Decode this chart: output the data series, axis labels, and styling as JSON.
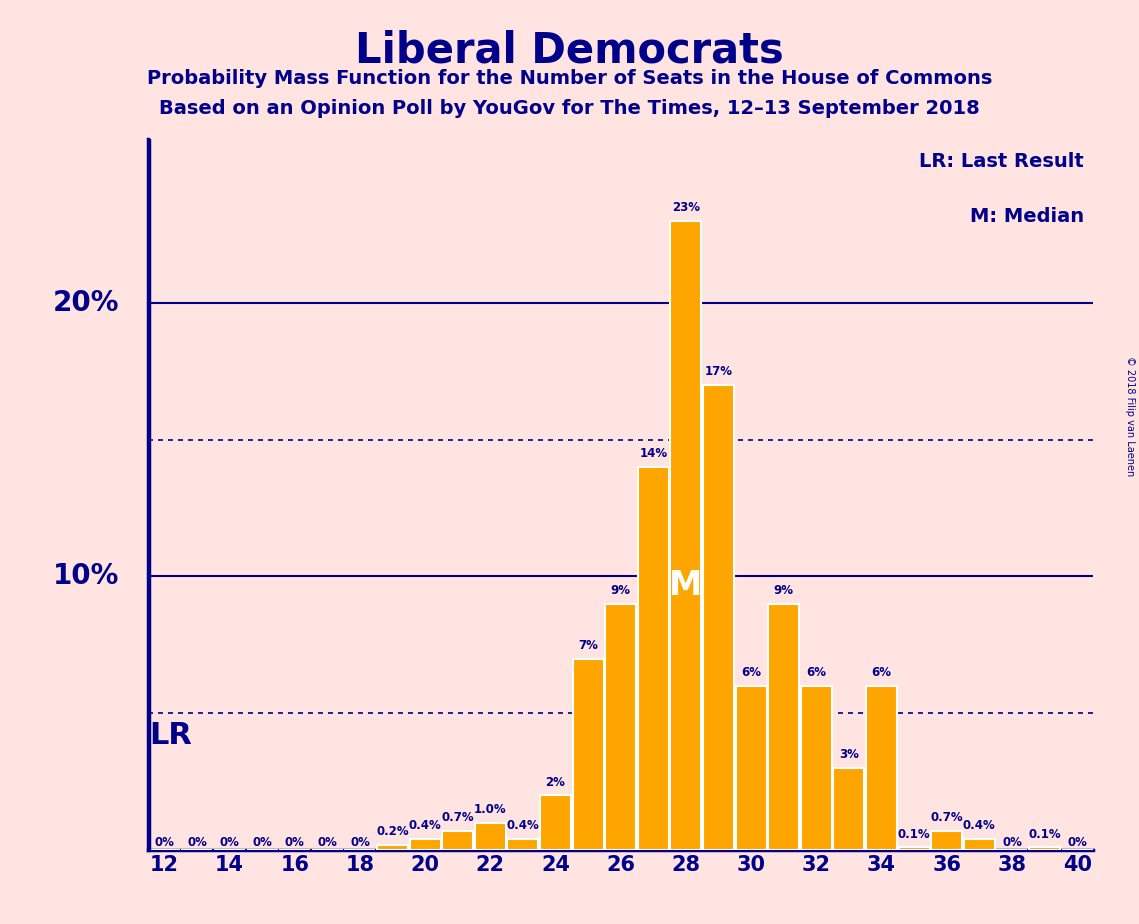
{
  "title": "Liberal Democrats",
  "subtitle1": "Probability Mass Function for the Number of Seats in the House of Commons",
  "subtitle2": "Based on an Opinion Poll by YouGov for The Times, 12–13 September 2018",
  "copyright": "© 2018 Filip van Laenen",
  "seats": [
    12,
    13,
    14,
    15,
    16,
    17,
    18,
    19,
    20,
    21,
    22,
    23,
    24,
    25,
    26,
    27,
    28,
    29,
    30,
    31,
    32,
    33,
    34,
    35,
    36,
    37,
    38,
    39,
    40
  ],
  "values": [
    0.0,
    0.0,
    0.0,
    0.0,
    0.0,
    0.0,
    0.0,
    0.2,
    0.4,
    0.7,
    1.0,
    0.4,
    2.0,
    7.0,
    9.0,
    14.0,
    23.0,
    17.0,
    6.0,
    9.0,
    6.0,
    3.0,
    6.0,
    0.1,
    0.7,
    0.4,
    0.0,
    0.1,
    0.0
  ],
  "labels": [
    "0%",
    "0%",
    "0%",
    "0%",
    "0%",
    "0%",
    "0%",
    "0.2%",
    "0.4%",
    "0.7%",
    "1.0%",
    "0.4%",
    "2%",
    "7%",
    "9%",
    "14%",
    "23%",
    "17%",
    "6%",
    "9%",
    "6%",
    "3%",
    "6%",
    "0.1%",
    "0.7%",
    "0.4%",
    "0%",
    "0.1%",
    "0%"
  ],
  "last_result": 12,
  "median": 28,
  "bar_color": "#FFA500",
  "bar_edge_color": "#FFFFFF",
  "background_color": "#FFE4E1",
  "text_color": "#00008B",
  "lr_label": "LR",
  "median_label": "M",
  "legend_lr": "LR: Last Result",
  "legend_m": "M: Median",
  "dotted_lines": [
    5,
    15
  ],
  "solid_lines": [
    10,
    20
  ],
  "ylim_max": 26,
  "xmin": 11.5,
  "xmax": 40.5
}
